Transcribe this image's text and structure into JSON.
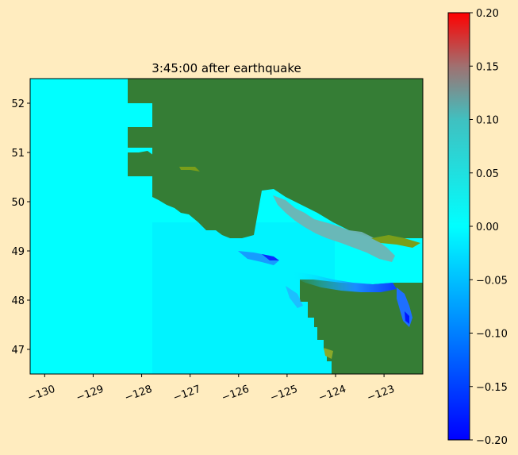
{
  "chart_data": {
    "type": "heatmap",
    "title": "3:45:00 after earthquake",
    "xlabel": "",
    "ylabel": "",
    "xlim": [
      -130.3,
      -122.2
    ],
    "ylim": [
      46.5,
      52.5
    ],
    "x_ticks": [
      -130,
      -129,
      -128,
      -127,
      -126,
      -125,
      -124,
      -123
    ],
    "x_tick_labels": [
      "−130",
      "−129",
      "−128",
      "−127",
      "−126",
      "−125",
      "−124",
      "−123"
    ],
    "y_ticks": [
      47,
      48,
      49,
      50,
      51,
      52
    ],
    "y_tick_labels": [
      "47",
      "48",
      "49",
      "50",
      "51",
      "52"
    ],
    "colorbar": {
      "range": [
        -0.2,
        0.2
      ],
      "ticks": [
        0.2,
        0.15,
        0.1,
        0.05,
        0.0,
        -0.05,
        -0.1,
        -0.15,
        -0.2
      ],
      "tick_labels": [
        "0.20",
        "0.15",
        "0.10",
        "0.05",
        "0.00",
        "−0.05",
        "−0.10",
        "−0.15",
        "−0.20"
      ],
      "colors": [
        "#0000ff",
        "#00ffff",
        "#ff0000"
      ]
    },
    "land_color": "#357d35",
    "ocean_zero_color": "#00ffff",
    "colors": {
      "figure_background": "#ffecbf",
      "land": "#357d35",
      "land_shallow": "#7a9e1a",
      "ocean": "#00ffff",
      "strait_positive": "#7fb0b0",
      "trough_negative": "#0b5dff"
    }
  }
}
